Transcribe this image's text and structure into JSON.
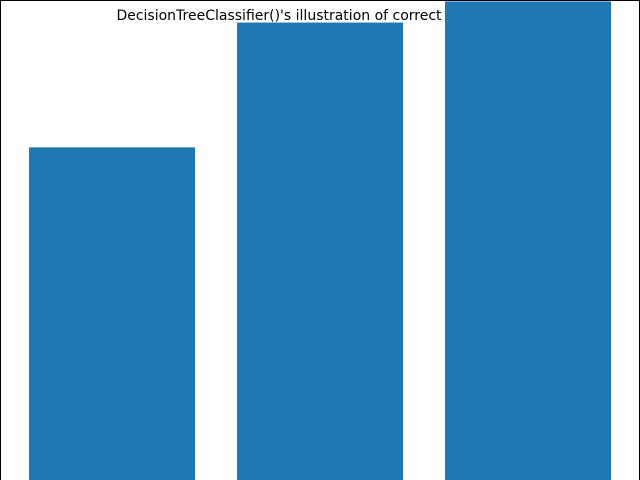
{
  "chart_data": {
    "type": "bar",
    "title": "DecisionTreeClassifier()'s illustration of correct predictions",
    "xlabel": "",
    "ylabel": "",
    "categories": [
      "",
      "",
      ""
    ],
    "values": [
      0.693,
      0.953,
      0.997
    ],
    "ylim": [
      0,
      1.0
    ],
    "grid": false,
    "legend": "none",
    "bar_color": "#1f77b4",
    "axes_color": "#000000"
  }
}
